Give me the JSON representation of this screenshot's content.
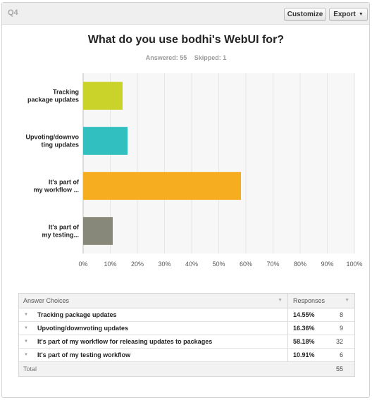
{
  "header": {
    "question_label": "Q4",
    "customize_label": "Customize",
    "export_label": "Export",
    "export_caret": "▼"
  },
  "title": "What do you use bodhi's WebUI for?",
  "stats": {
    "answered": "Answered: 55",
    "skipped": "Skipped: 1"
  },
  "chart_data": {
    "type": "bar",
    "orientation": "horizontal",
    "categories": [
      [
        "Tracking",
        "package updates"
      ],
      [
        "Upvoting/downvo",
        "ting updates"
      ],
      [
        "It's part of",
        "my workflow ..."
      ],
      [
        "It's part of",
        "my testing..."
      ]
    ],
    "values": [
      14.55,
      16.36,
      58.18,
      10.91
    ],
    "colors": [
      "#c9d32a",
      "#31bfbf",
      "#f6ae20",
      "#88887a"
    ],
    "xlim": [
      0,
      100
    ],
    "ticks": [
      "0%",
      "10%",
      "20%",
      "30%",
      "40%",
      "50%",
      "60%",
      "70%",
      "80%",
      "90%",
      "100%"
    ],
    "grid": true
  },
  "table": {
    "header_answer": "Answer Choices",
    "header_responses": "Responses",
    "sort_glyph": "▼",
    "row_caret": "▼",
    "rows": [
      {
        "label": "Tracking package updates",
        "pct": "14.55%",
        "count": "8"
      },
      {
        "label": "Upvoting/downvoting updates",
        "pct": "16.36%",
        "count": "9"
      },
      {
        "label": "It's part of my workflow for releasing updates to packages",
        "pct": "58.18%",
        "count": "32"
      },
      {
        "label": "It's part of my testing workflow",
        "pct": "10.91%",
        "count": "6"
      }
    ],
    "total_label": "Total",
    "total_count": "55"
  }
}
